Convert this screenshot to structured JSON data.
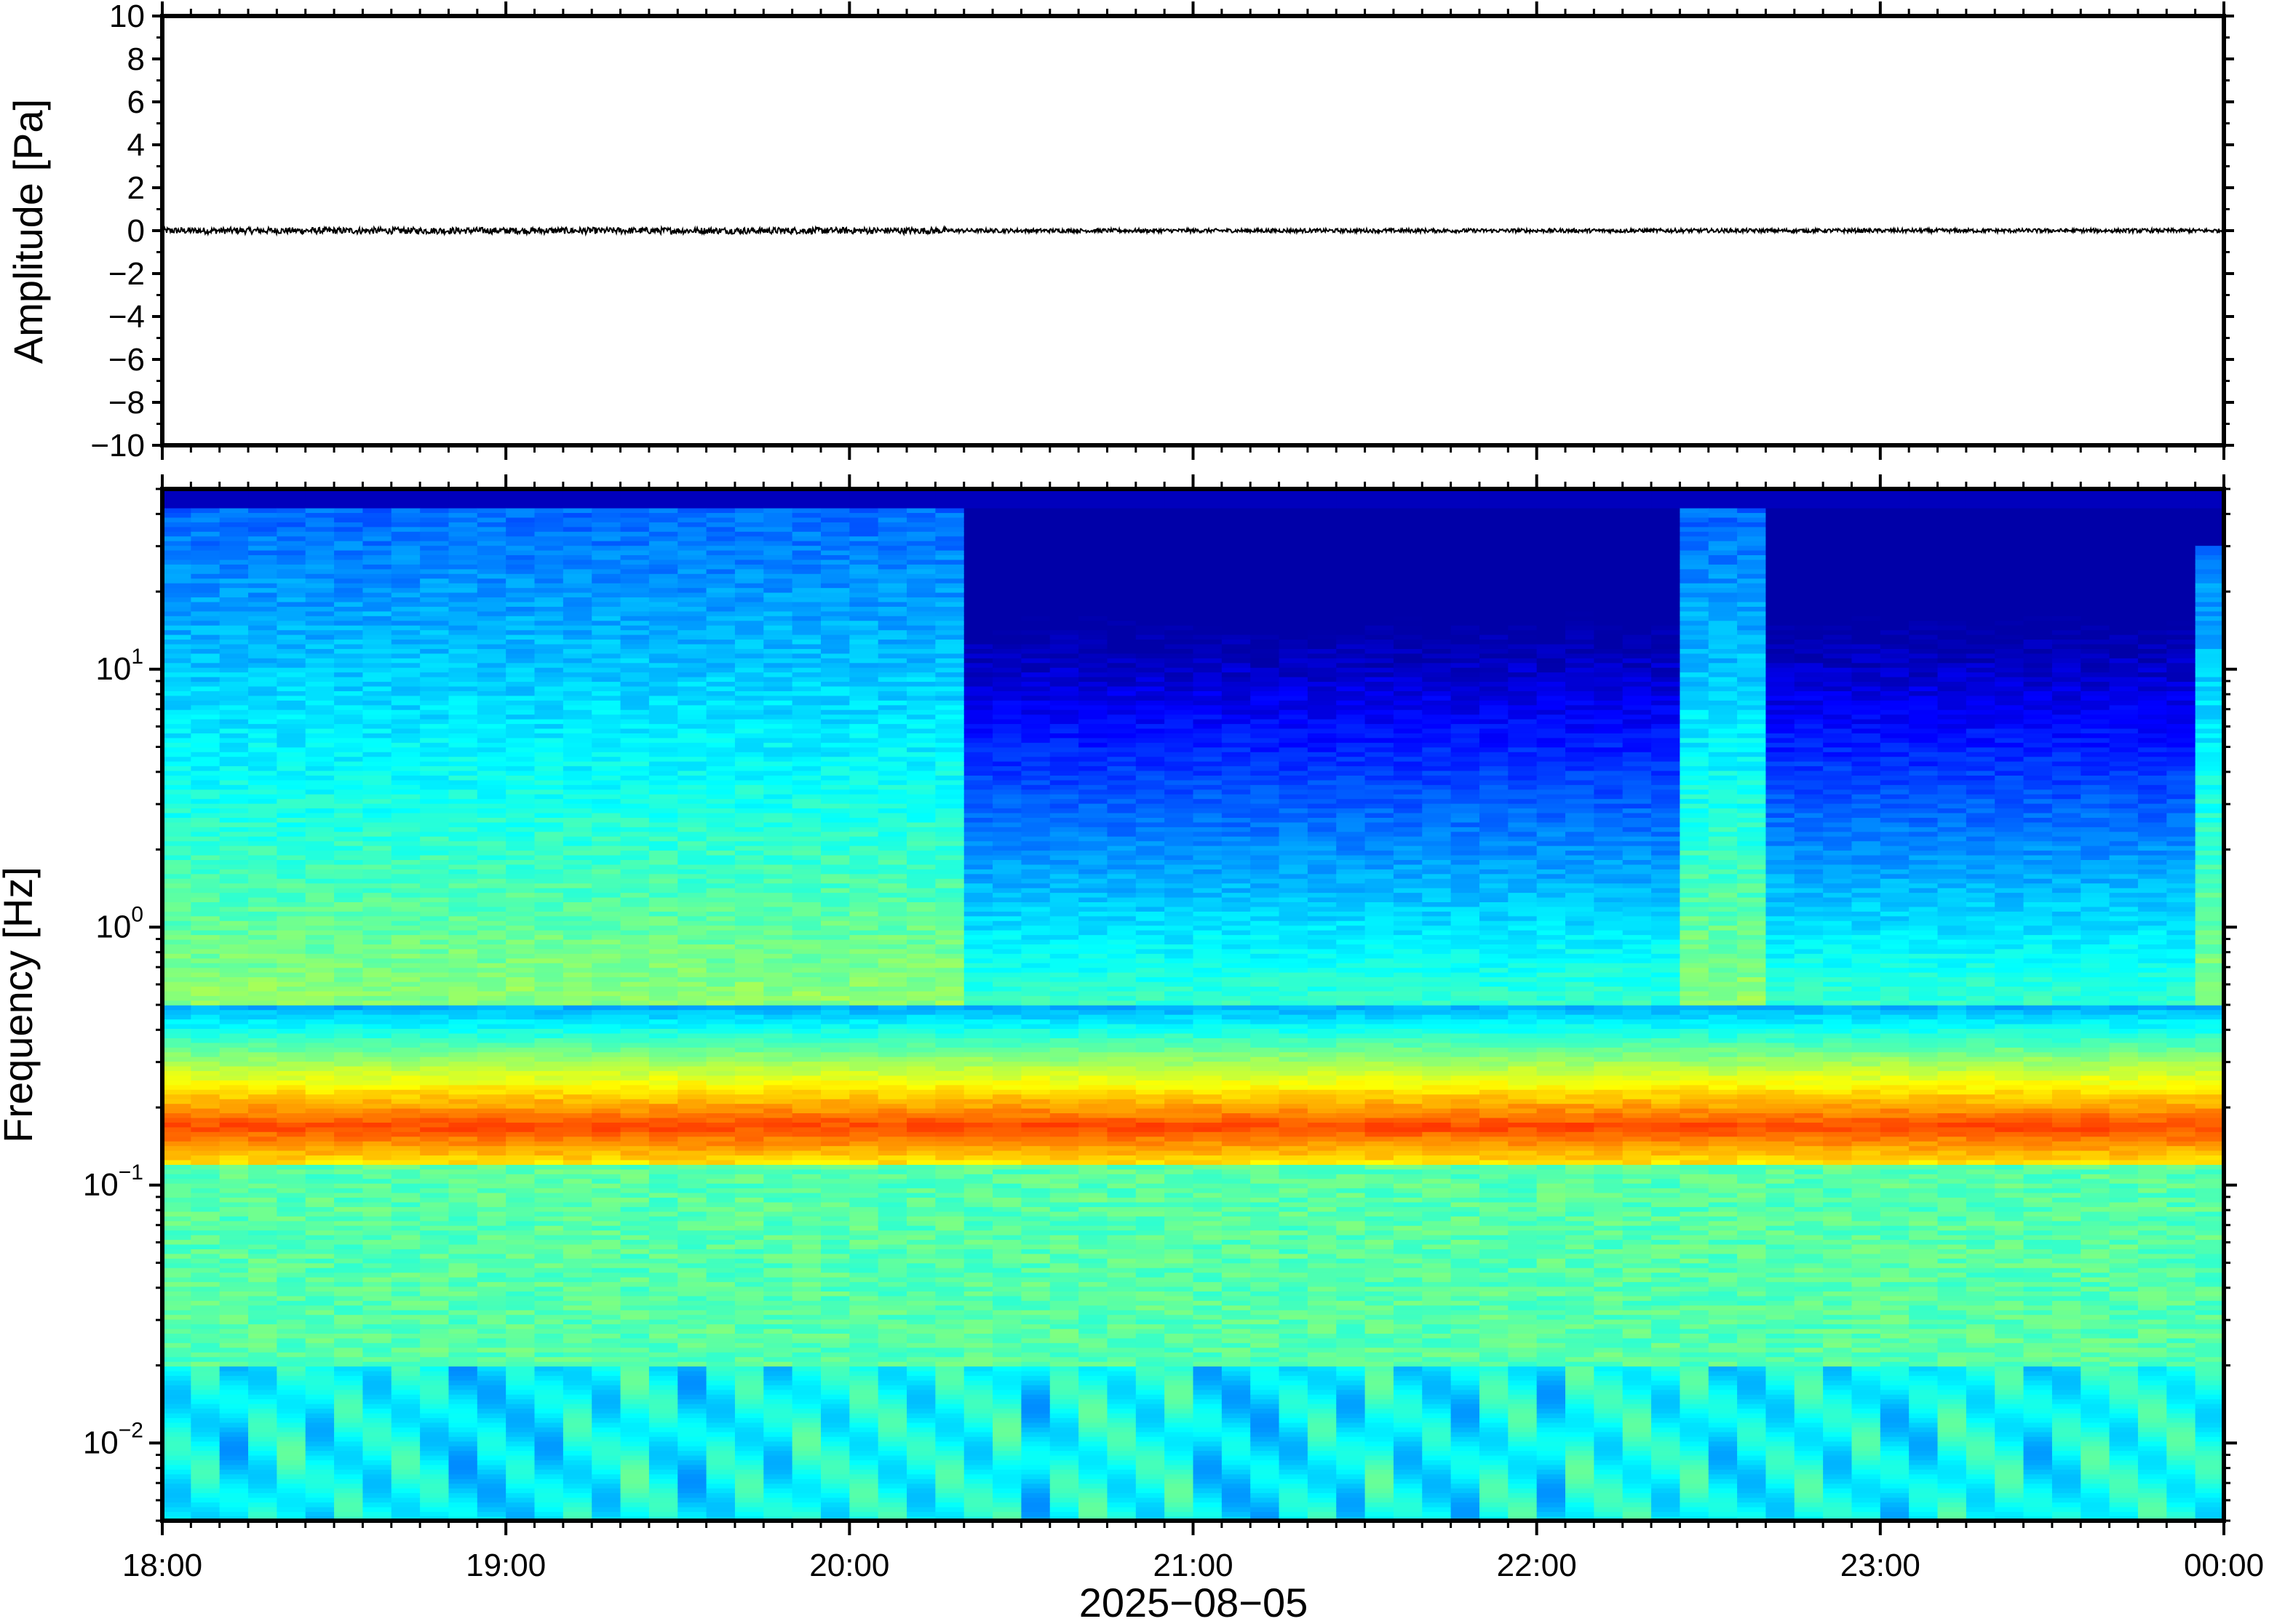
{
  "chart_data": [
    {
      "type": "line",
      "panel": "waveform",
      "ylabel": "Amplitude [Pa]",
      "ylim": [
        -10,
        10
      ],
      "yticks": [
        -10,
        -8,
        -6,
        -4,
        -2,
        0,
        2,
        4,
        6,
        8,
        10
      ],
      "ytick_labels": [
        "−10",
        "−8",
        "−6",
        "−4",
        "−2",
        "0",
        "2",
        "4",
        "6",
        "8",
        "10"
      ],
      "x_range": [
        "18:00",
        "00:00"
      ],
      "series": [
        {
          "description_value_range": [
            -0.15,
            0.15
          ],
          "mean": 0
        }
      ]
    },
    {
      "type": "heatmap",
      "panel": "spectrogram",
      "ylabel": "Frequency [Hz]",
      "xlabel": "2025−08−05",
      "y_scale": "log",
      "ylim": [
        0.005,
        50
      ],
      "yticks": [
        0.01,
        0.1,
        1,
        10
      ],
      "ytick_labels": [
        {
          "base": "10",
          "exp": "−2"
        },
        {
          "base": "10",
          "exp": "−1"
        },
        {
          "base": "10",
          "exp": "0"
        },
        {
          "base": "10",
          "exp": "1"
        }
      ],
      "xticks": [
        "18:00",
        "19:00",
        "20:00",
        "21:00",
        "22:00",
        "23:00",
        "00:00"
      ],
      "x_range_hours": [
        18,
        24
      ],
      "colormap": "jet",
      "dominant_band_hz": [
        0.13,
        0.22
      ],
      "high_noise_segments_hours": [
        [
          18.0,
          20.3
        ],
        [
          22.4,
          22.65
        ]
      ],
      "quiet_segments_hours": [
        [
          20.3,
          21.4
        ],
        [
          21.6,
          22.4
        ],
        [
          22.65,
          23.95
        ]
      ]
    }
  ],
  "colors": {
    "frame": "#000000",
    "trace": "#000000",
    "background": "#ffffff"
  }
}
